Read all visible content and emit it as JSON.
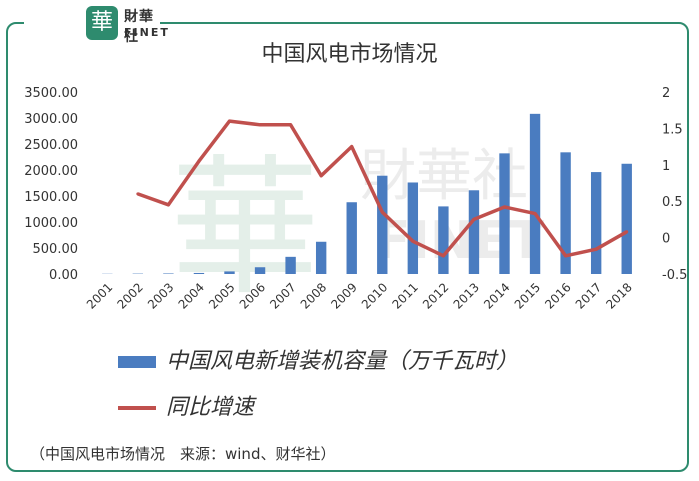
{
  "brand": {
    "logo_char": "華",
    "name_cn": "財華社",
    "name_en": "FINET"
  },
  "source_note": "（中国风电市场情况　来源：wind、财华社）",
  "chart_data": {
    "type": "bar",
    "title": "中国风电市场情况",
    "categories": [
      "2001",
      "2002",
      "2003",
      "2004",
      "2005",
      "2006",
      "2007",
      "2008",
      "2009",
      "2010",
      "2011",
      "2012",
      "2013",
      "2014",
      "2015",
      "2016",
      "2017",
      "2018"
    ],
    "series": [
      {
        "name": "中国风电新增装机容量（万千瓦时）",
        "type": "bar",
        "axis": "left",
        "color": "#4a7cc0",
        "values": [
          4,
          7,
          10,
          20,
          50,
          130,
          330,
          620,
          1380,
          1890,
          1760,
          1300,
          1610,
          2320,
          3080,
          2340,
          1960,
          2120
        ]
      },
      {
        "name": "同比增速",
        "type": "line",
        "axis": "right",
        "color": "#c0504d",
        "values": [
          null,
          0.6,
          0.45,
          1.05,
          1.6,
          1.55,
          1.55,
          0.85,
          1.25,
          0.35,
          -0.05,
          -0.25,
          0.25,
          0.42,
          0.33,
          -0.25,
          -0.16,
          0.08
        ]
      }
    ],
    "y_left": {
      "ylim": [
        0,
        3500
      ],
      "ticks": [
        "0.00",
        "500.00",
        "1000.00",
        "1500.00",
        "2000.00",
        "2500.00",
        "3000.00",
        "3500.00"
      ]
    },
    "y_right": {
      "ylim": [
        -0.5,
        2
      ],
      "ticks": [
        "-0.5",
        "0",
        "0.5",
        "1",
        "1.5",
        "2"
      ]
    },
    "grid": false,
    "legend_position": "bottom"
  }
}
